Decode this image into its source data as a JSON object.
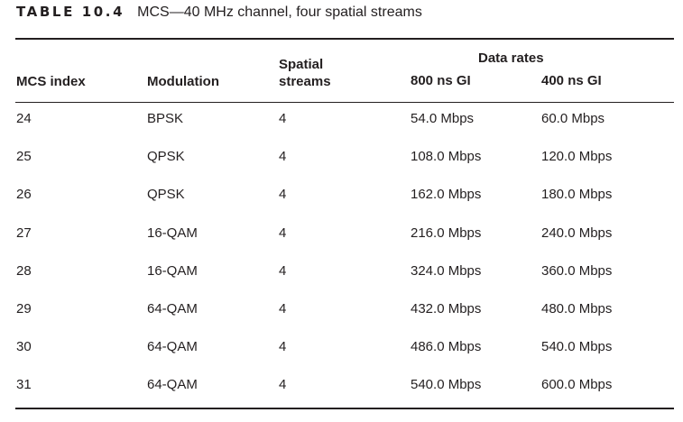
{
  "caption": {
    "number": "TABLE 10.4",
    "title": "MCS—40 MHz channel, four spatial streams"
  },
  "table": {
    "headers": {
      "mcs_index": "MCS index",
      "modulation": "Modulation",
      "spatial_line1": "Spatial",
      "spatial_line2": "streams",
      "data_rates": "Data rates",
      "gi_800": "800 ns GI",
      "gi_400": "400 ns GI"
    },
    "rows": [
      {
        "mcs": "24",
        "modulation": "BPSK",
        "streams": "4",
        "gi800": "54.0 Mbps",
        "gi400": "60.0 Mbps"
      },
      {
        "mcs": "25",
        "modulation": "QPSK",
        "streams": "4",
        "gi800": "108.0 Mbps",
        "gi400": "120.0 Mbps"
      },
      {
        "mcs": "26",
        "modulation": "QPSK",
        "streams": "4",
        "gi800": "162.0 Mbps",
        "gi400": "180.0 Mbps"
      },
      {
        "mcs": "27",
        "modulation": "16-QAM",
        "streams": "4",
        "gi800": "216.0 Mbps",
        "gi400": "240.0 Mbps"
      },
      {
        "mcs": "28",
        "modulation": "16-QAM",
        "streams": "4",
        "gi800": "324.0 Mbps",
        "gi400": "360.0 Mbps"
      },
      {
        "mcs": "29",
        "modulation": "64-QAM",
        "streams": "4",
        "gi800": "432.0 Mbps",
        "gi400": "480.0 Mbps"
      },
      {
        "mcs": "30",
        "modulation": "64-QAM",
        "streams": "4",
        "gi800": "486.0 Mbps",
        "gi400": "540.0 Mbps"
      },
      {
        "mcs": "31",
        "modulation": "64-QAM",
        "streams": "4",
        "gi800": "540.0 Mbps",
        "gi400": "600.0 Mbps"
      }
    ]
  }
}
